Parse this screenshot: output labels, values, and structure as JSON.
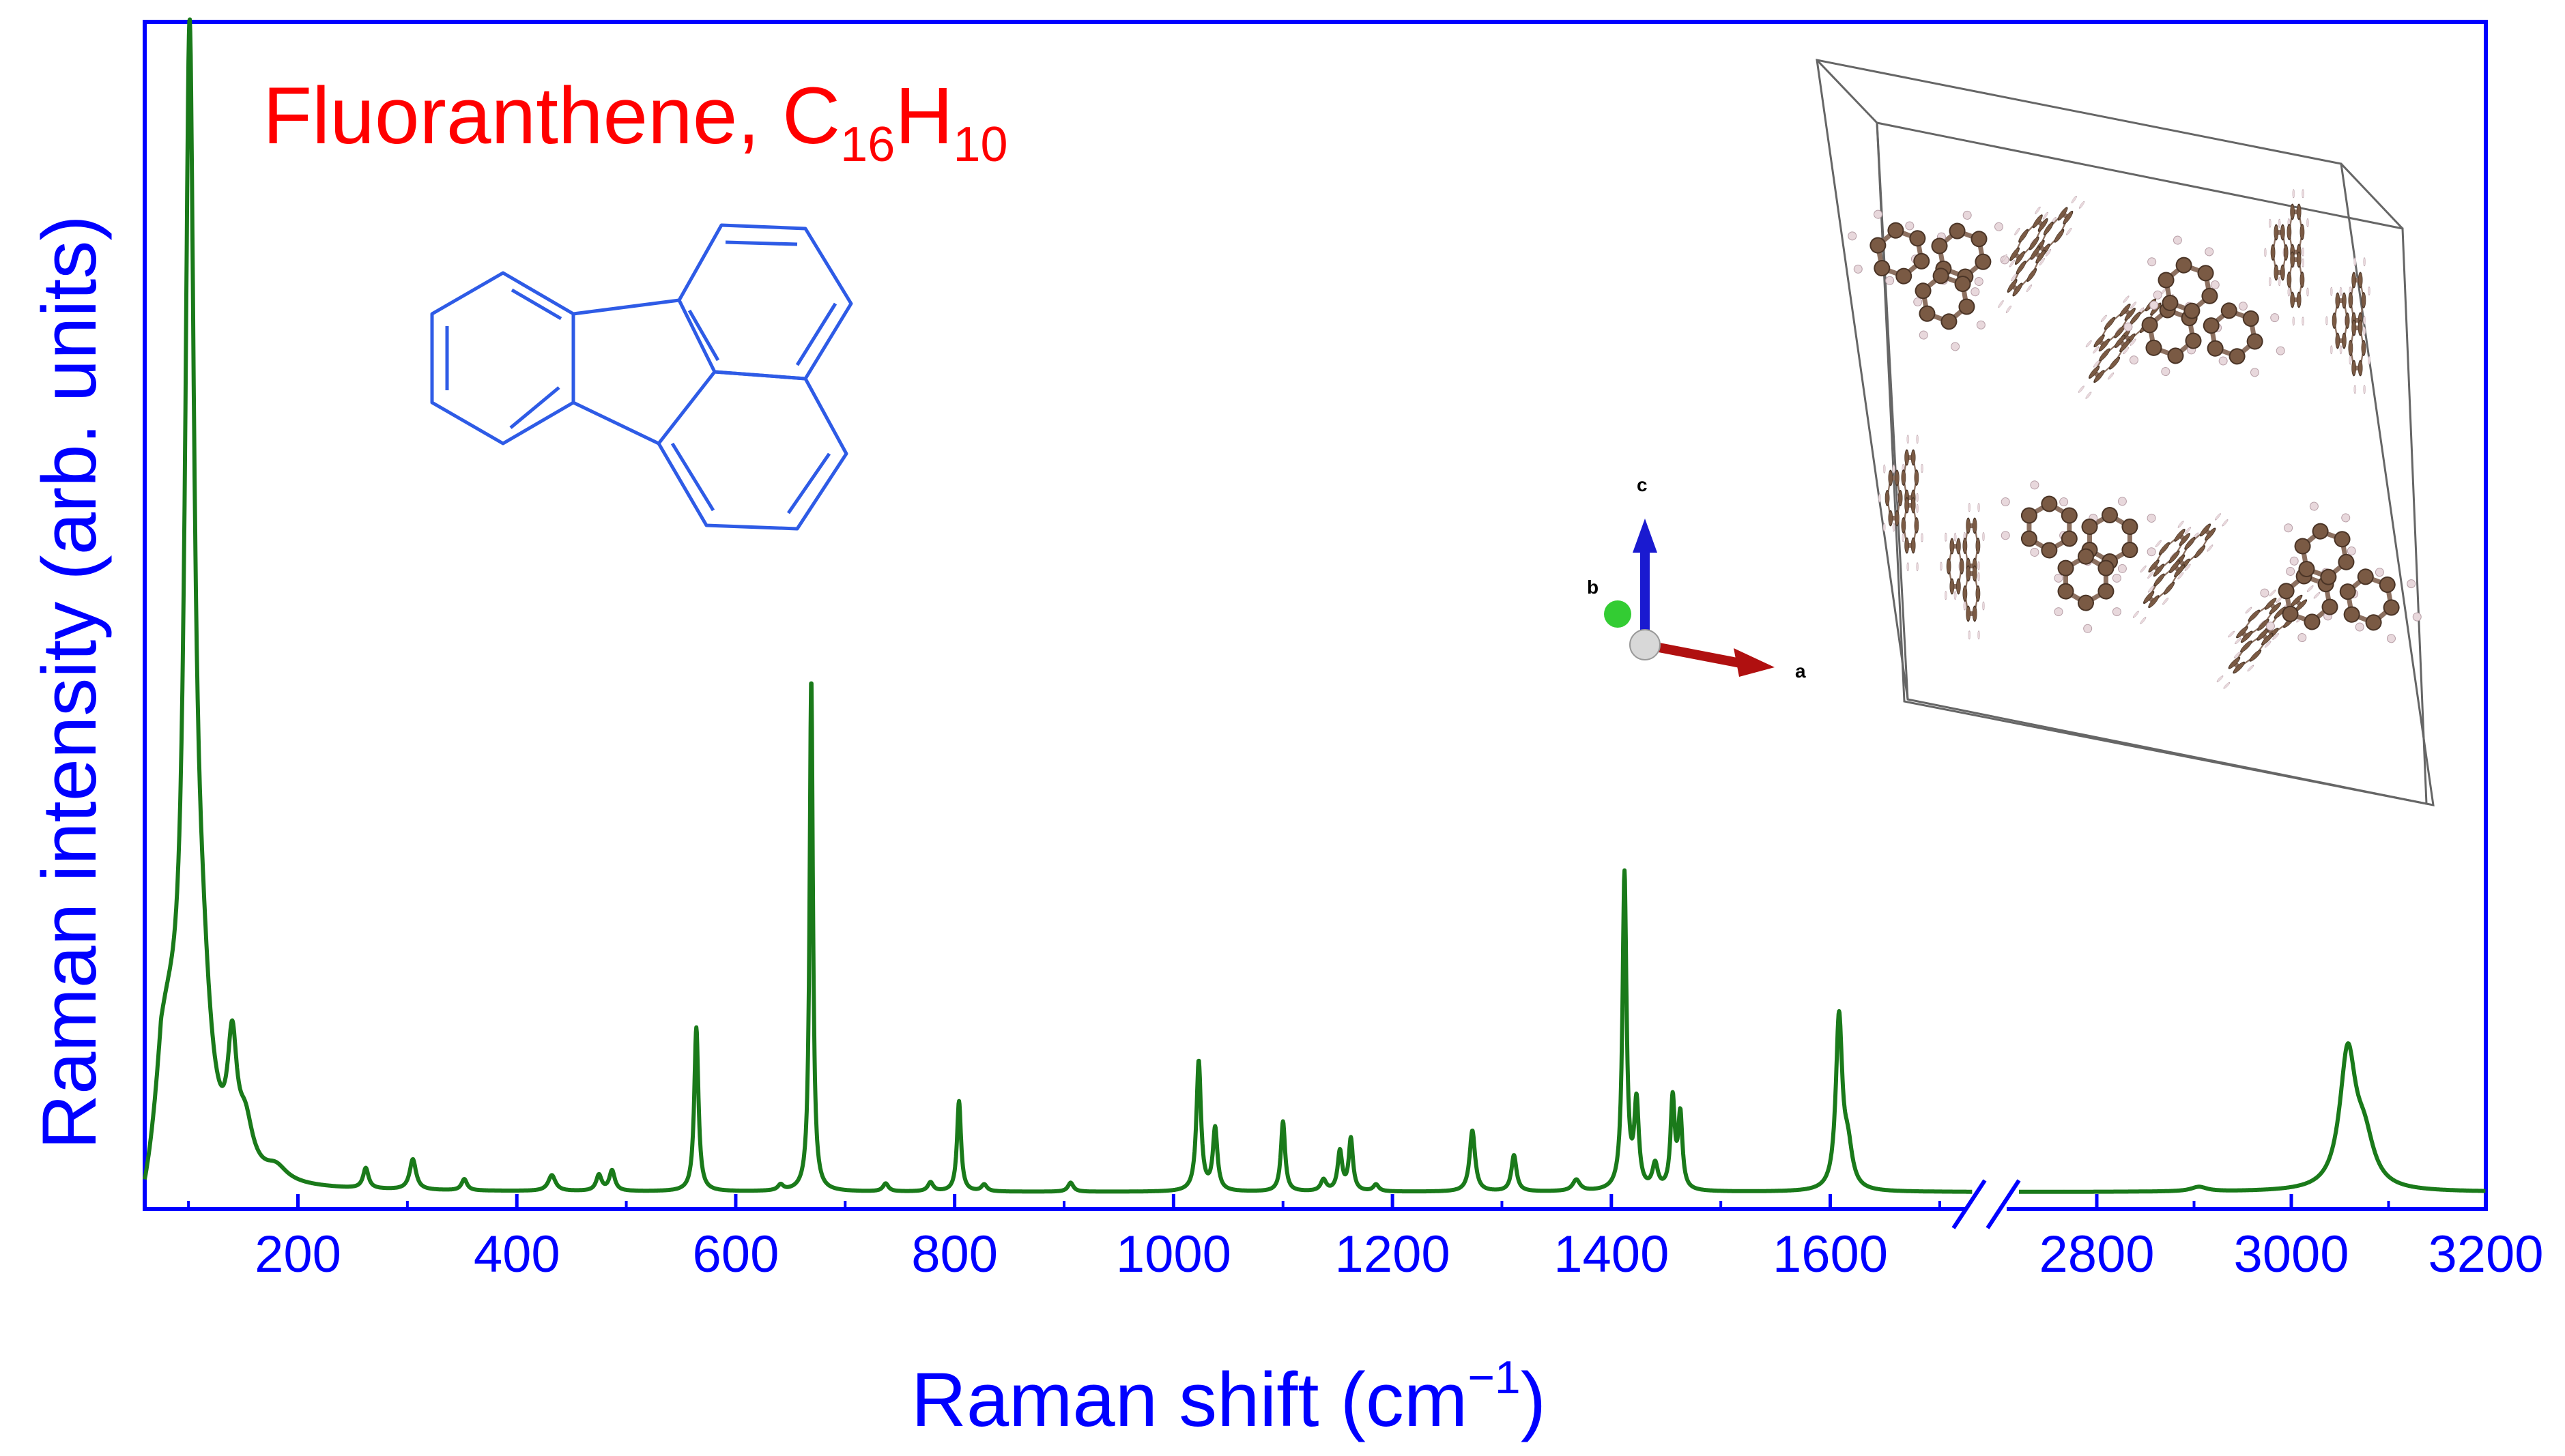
{
  "colors": {
    "frame": "#0000ff",
    "spectrum": "#1a7a1a",
    "title": "#ff0000",
    "molecule": "#2e5be6",
    "atom_c": "#7a5a44",
    "atom_h": "#e8d8dc"
  },
  "chart_data": {
    "type": "line",
    "title_main": "Fluoranthene, C",
    "title_sub1": "16",
    "title_mid": "H",
    "title_sub2": "10",
    "xlabel": "Raman shift (cm",
    "xlabel_sup": "−1",
    "xlabel_end": ")",
    "ylabel": "Raman intensity (arb. units)",
    "axis_break": true,
    "segments": [
      {
        "xlim": [
          60,
          1730
        ],
        "ticks": [
          "200",
          "400",
          "600",
          "800",
          "1000",
          "1200",
          "1400",
          "1600"
        ]
      },
      {
        "xlim": [
          2720,
          3200
        ],
        "ticks": [
          "2800",
          "3000",
          "3200"
        ]
      }
    ],
    "ylim": [
      0,
      1.05
    ],
    "grid": false,
    "legend": "none",
    "baseline": 0.015,
    "peaks": [
      {
        "x": 80,
        "h": 0.12,
        "w": 18
      },
      {
        "x": 101,
        "h": 0.93,
        "w": 5
      },
      {
        "x": 112,
        "h": 0.12,
        "w": 10
      },
      {
        "x": 140,
        "h": 0.1,
        "w": 5
      },
      {
        "x": 152,
        "h": 0.04,
        "w": 8
      },
      {
        "x": 180,
        "h": 0.012,
        "w": 12
      },
      {
        "x": 262,
        "h": 0.018,
        "w": 3
      },
      {
        "x": 305,
        "h": 0.027,
        "w": 3.5
      },
      {
        "x": 352,
        "h": 0.01,
        "w": 3
      },
      {
        "x": 432,
        "h": 0.014,
        "w": 4
      },
      {
        "x": 475,
        "h": 0.014,
        "w": 3
      },
      {
        "x": 487,
        "h": 0.018,
        "w": 3
      },
      {
        "x": 564,
        "h": 0.145,
        "w": 2.3
      },
      {
        "x": 641,
        "h": 0.005,
        "w": 3
      },
      {
        "x": 669,
        "h": 0.455,
        "w": 1.8
      },
      {
        "x": 737,
        "h": 0.007,
        "w": 3
      },
      {
        "x": 778,
        "h": 0.008,
        "w": 3
      },
      {
        "x": 804,
        "h": 0.08,
        "w": 2.2
      },
      {
        "x": 827,
        "h": 0.006,
        "w": 3
      },
      {
        "x": 906,
        "h": 0.008,
        "w": 3
      },
      {
        "x": 1023,
        "h": 0.115,
        "w": 2.5
      },
      {
        "x": 1038,
        "h": 0.055,
        "w": 2.5
      },
      {
        "x": 1100,
        "h": 0.062,
        "w": 2.3
      },
      {
        "x": 1137,
        "h": 0.01,
        "w": 3
      },
      {
        "x": 1152,
        "h": 0.035,
        "w": 2.5
      },
      {
        "x": 1162,
        "h": 0.046,
        "w": 2.3
      },
      {
        "x": 1185,
        "h": 0.006,
        "w": 3
      },
      {
        "x": 1273,
        "h": 0.054,
        "w": 3
      },
      {
        "x": 1311,
        "h": 0.032,
        "w": 2.8
      },
      {
        "x": 1368,
        "h": 0.01,
        "w": 4
      },
      {
        "x": 1412,
        "h": 0.28,
        "w": 2.2
      },
      {
        "x": 1423,
        "h": 0.075,
        "w": 2.5
      },
      {
        "x": 1440,
        "h": 0.022,
        "w": 3
      },
      {
        "x": 1456,
        "h": 0.08,
        "w": 2.3
      },
      {
        "x": 1463,
        "h": 0.065,
        "w": 2.3
      },
      {
        "x": 1608,
        "h": 0.15,
        "w": 3.5
      },
      {
        "x": 1616,
        "h": 0.035,
        "w": 5
      },
      {
        "x": 2905,
        "h": 0.004,
        "w": 10
      },
      {
        "x": 3058,
        "h": 0.118,
        "w": 10
      },
      {
        "x": 3075,
        "h": 0.04,
        "w": 12
      }
    ]
  },
  "inset": {
    "axes": {
      "a": "a",
      "b": "b",
      "c": "c"
    }
  }
}
